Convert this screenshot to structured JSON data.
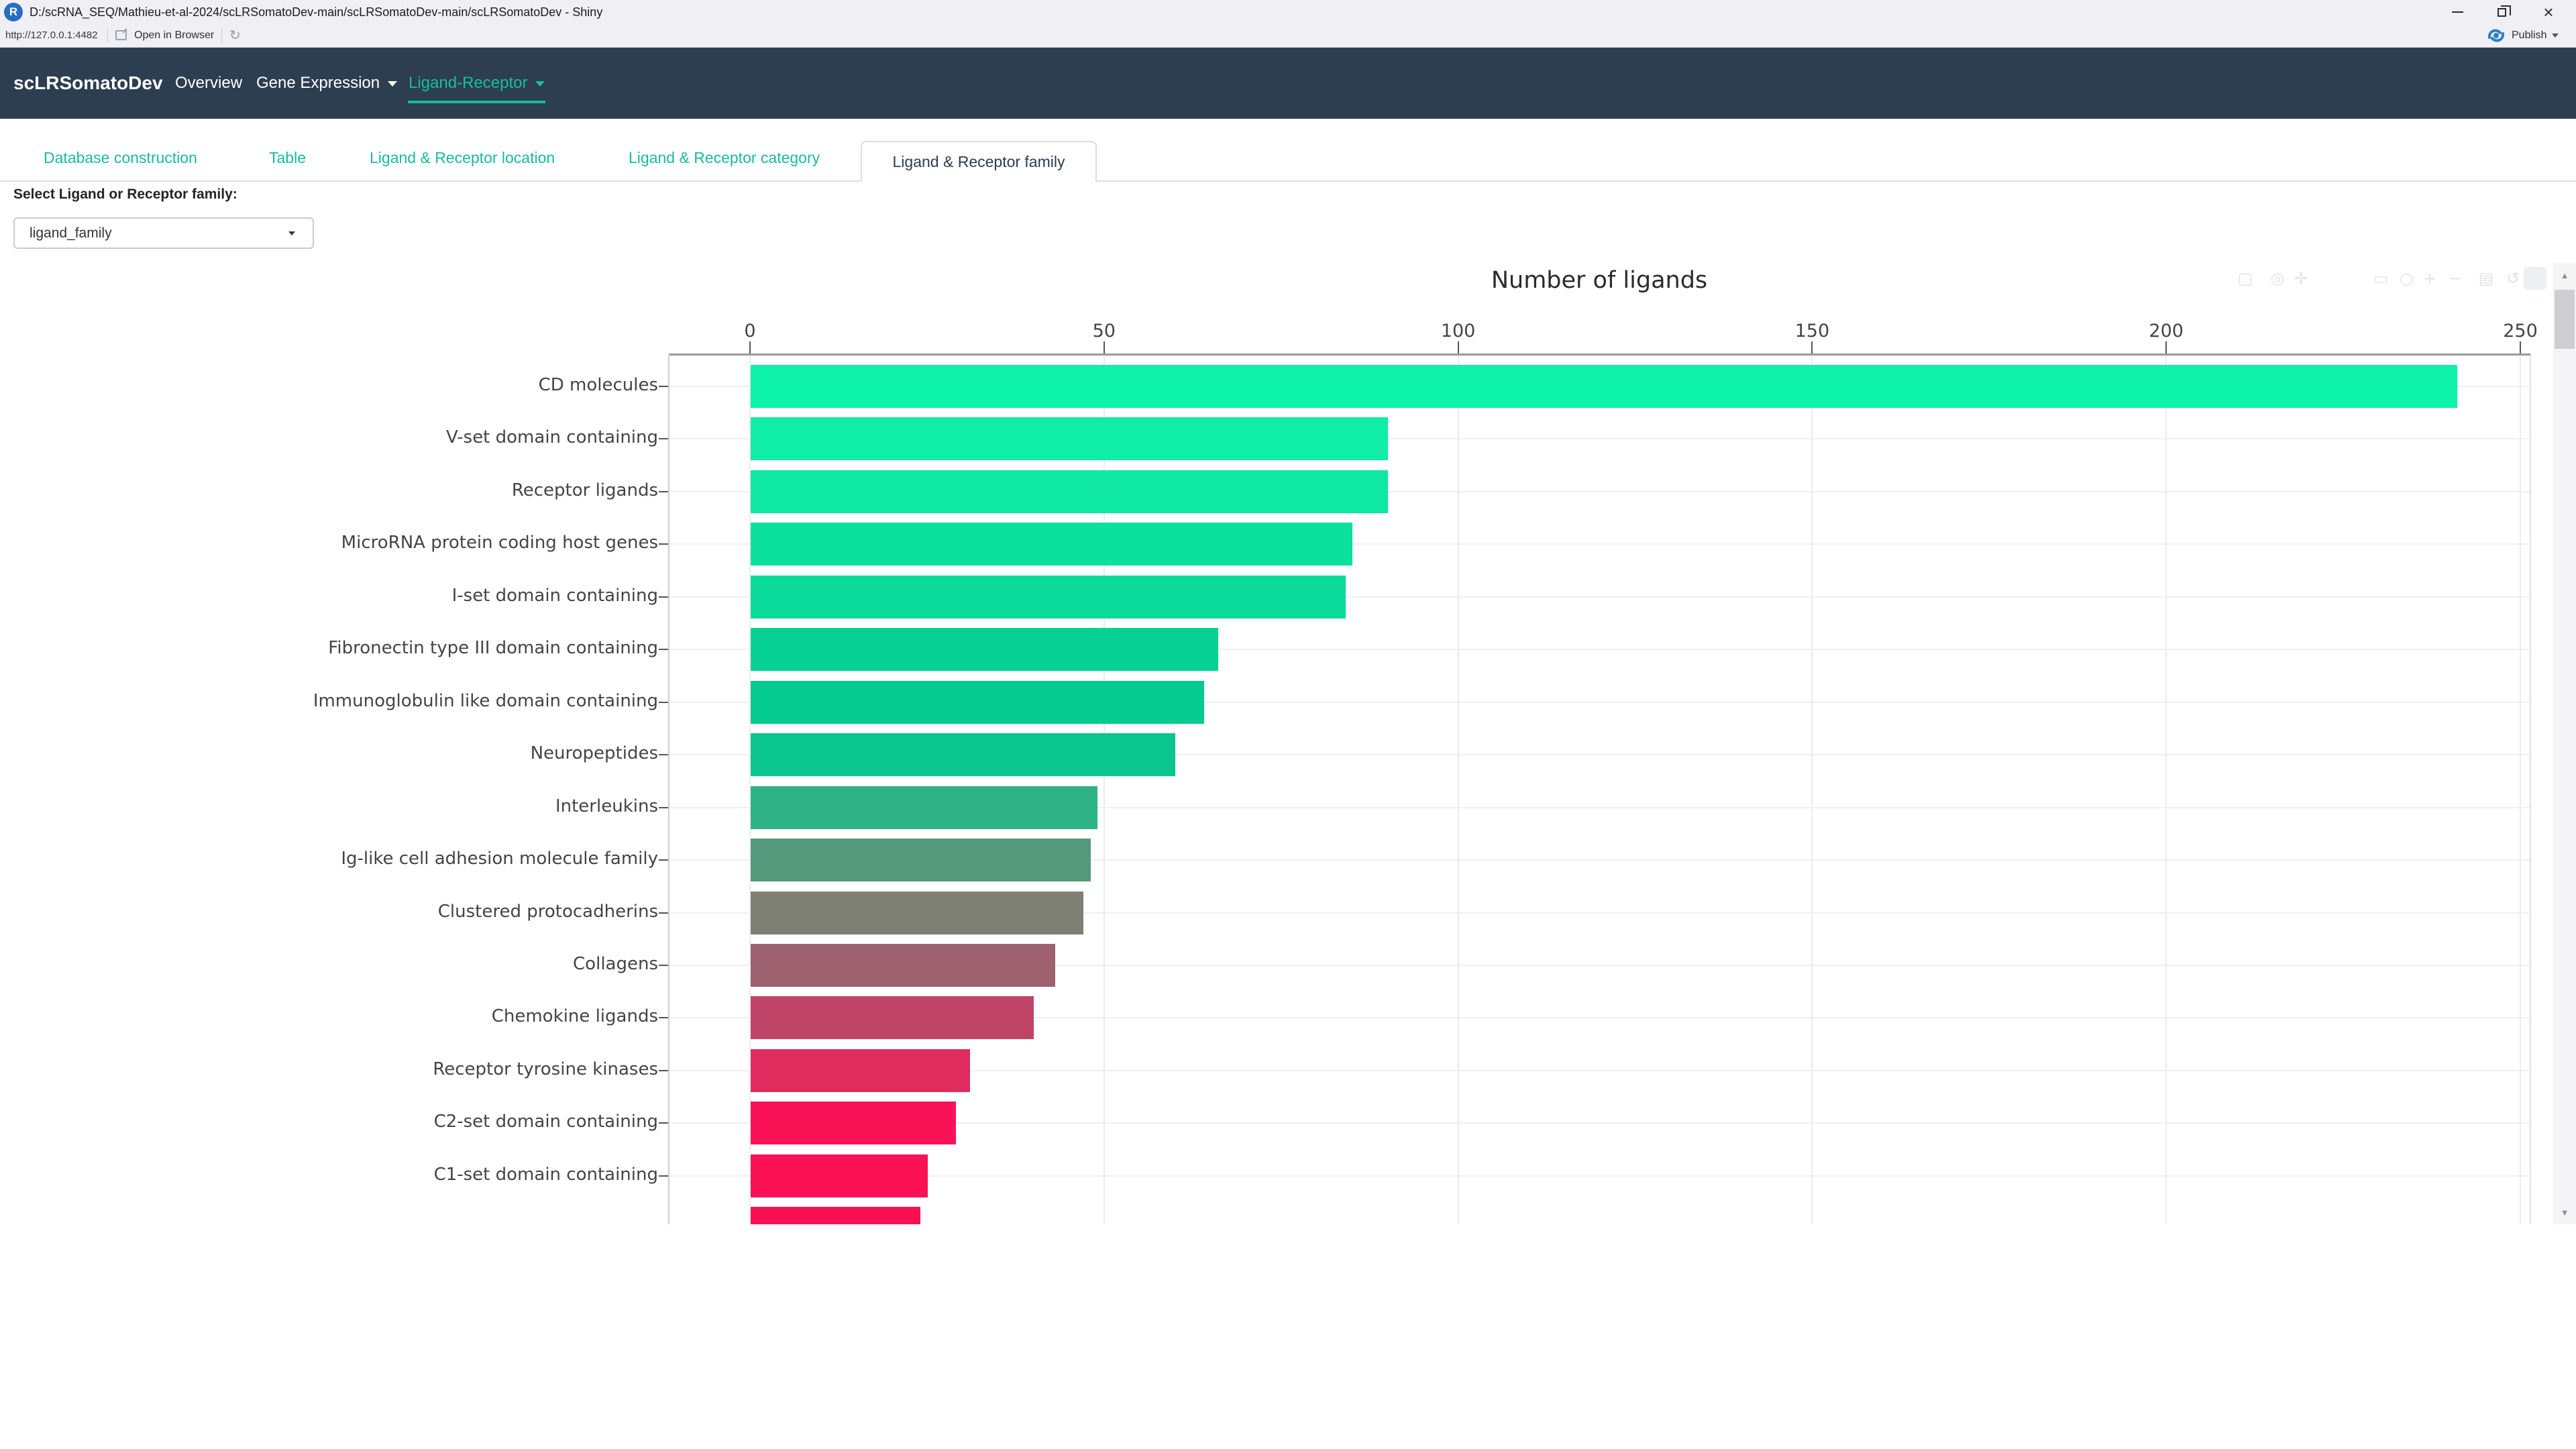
{
  "window": {
    "title": "D:/scRNA_SEQ/Mathieu-et-al-2024/scLRSomatoDev-main/scLRSomatoDev-main/scLRSomatoDev - Shiny",
    "app_icon": "r-logo-icon",
    "app_icon_letter": "R",
    "controls": [
      "minimize-icon",
      "restore-icon",
      "close-icon"
    ]
  },
  "toolbar": {
    "url": "http://127.0.0.1:4482",
    "open_in_browser": "Open in Browser",
    "publish": "Publish",
    "icons": [
      "open-in-browser-icon",
      "refresh-icon",
      "publish-icon",
      "chevron-down-icon"
    ]
  },
  "navbar": {
    "brand": "scLRSomatoDev",
    "bg_color": "#2c3e50",
    "accent_color": "#1abc9c",
    "items": [
      {
        "label": "Overview",
        "dropdown": false,
        "active": false
      },
      {
        "label": "Gene Expression",
        "dropdown": true,
        "active": false
      },
      {
        "label": "Ligand-Receptor",
        "dropdown": true,
        "active": true
      }
    ]
  },
  "tabs": [
    {
      "label": "Database construction",
      "active": false
    },
    {
      "label": "Table",
      "active": false
    },
    {
      "label": "Ligand & Receptor location",
      "active": false
    },
    {
      "label": "Ligand & Receptor category",
      "active": false
    },
    {
      "label": "Ligand & Receptor family",
      "active": true
    }
  ],
  "filter": {
    "label": "Select Ligand or Receptor family:",
    "value": "ligand_family"
  },
  "chart_data": {
    "type": "bar",
    "orientation": "horizontal",
    "title": "Number of ligands",
    "xlabel": "",
    "ylabel": "",
    "xlim": [
      0,
      250
    ],
    "xticks": [
      0,
      50,
      100,
      150,
      200,
      250
    ],
    "grid": true,
    "legend": false,
    "categories": [
      "CD molecules",
      "V-set domain containing",
      "Receptor ligands",
      "MicroRNA protein coding host genes",
      "I-set domain containing",
      "Fibronectin type III domain containing",
      "Immunoglobulin like domain containing",
      "Neuropeptides",
      "Interleukins",
      "Ig-like cell adhesion molecule family",
      "Clustered protocadherins",
      "Collagens",
      "Chemokine ligands",
      "Receptor tyrosine kinases",
      "C2-set domain containing",
      "C1-set domain containing",
      ""
    ],
    "values": [
      241,
      90,
      90,
      85,
      84,
      66,
      64,
      60,
      49,
      48,
      47,
      43,
      40,
      31,
      29,
      25,
      24
    ],
    "colors": [
      "#0cf2a6",
      "#10eda4",
      "#0fe8a2",
      "#0be09d",
      "#0adb9b",
      "#08d194",
      "#06cb90",
      "#0ac68d",
      "#2eb386",
      "#54997c",
      "#7e8074",
      "#9d6170",
      "#c04467",
      "#e02b5f",
      "#f91356",
      "#fa1254",
      "#f81053"
    ],
    "last_bar_clipped": true,
    "modebar_icons": [
      "camera-icon",
      "zoom-icon",
      "pan-icon",
      "box-select-icon",
      "lasso-icon",
      "zoom-in-icon",
      "zoom-out-icon",
      "autoscale-icon",
      "reset-axes-icon",
      "plotly-logo-icon"
    ]
  },
  "scrollbar": {
    "icons": [
      "scroll-up-icon",
      "scroll-down-icon"
    ]
  }
}
